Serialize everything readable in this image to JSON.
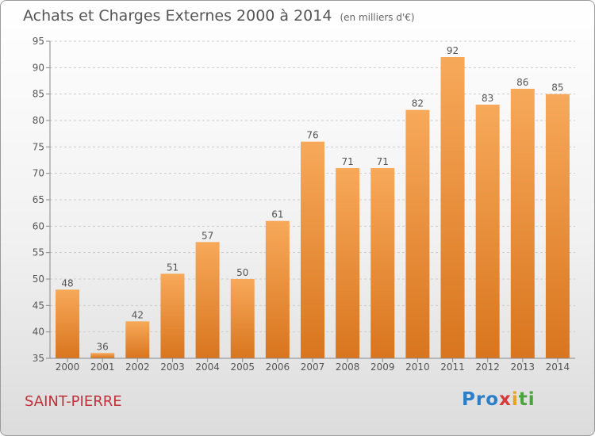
{
  "title": "Achats et Charges Externes 2000 à 2014",
  "subtitle": "(en milliers d'€)",
  "town": "SAINT-PIERRE",
  "logo": {
    "part1": "Pro",
    "part2": "x",
    "part3": "i",
    "part4": "ti"
  },
  "colors": {
    "bar_light": "#f7a95a",
    "bar_dark": "#d9751e",
    "text": "#555555",
    "town": "#c0313a"
  },
  "chart_data": {
    "type": "bar",
    "title": "Achats et Charges Externes 2000 à 2014",
    "subtitle": "(en milliers d'€)",
    "xlabel": "",
    "ylabel": "",
    "categories": [
      "2000",
      "2001",
      "2002",
      "2003",
      "2004",
      "2005",
      "2006",
      "2007",
      "2008",
      "2009",
      "2010",
      "2011",
      "2012",
      "2013",
      "2014"
    ],
    "values": [
      48,
      36,
      42,
      51,
      57,
      50,
      61,
      76,
      71,
      71,
      82,
      92,
      83,
      86,
      85
    ],
    "ylim": [
      35,
      95
    ],
    "yticks": [
      35,
      40,
      45,
      50,
      55,
      60,
      65,
      70,
      75,
      80,
      85,
      90,
      95
    ],
    "grid": true,
    "data_labels": true
  }
}
